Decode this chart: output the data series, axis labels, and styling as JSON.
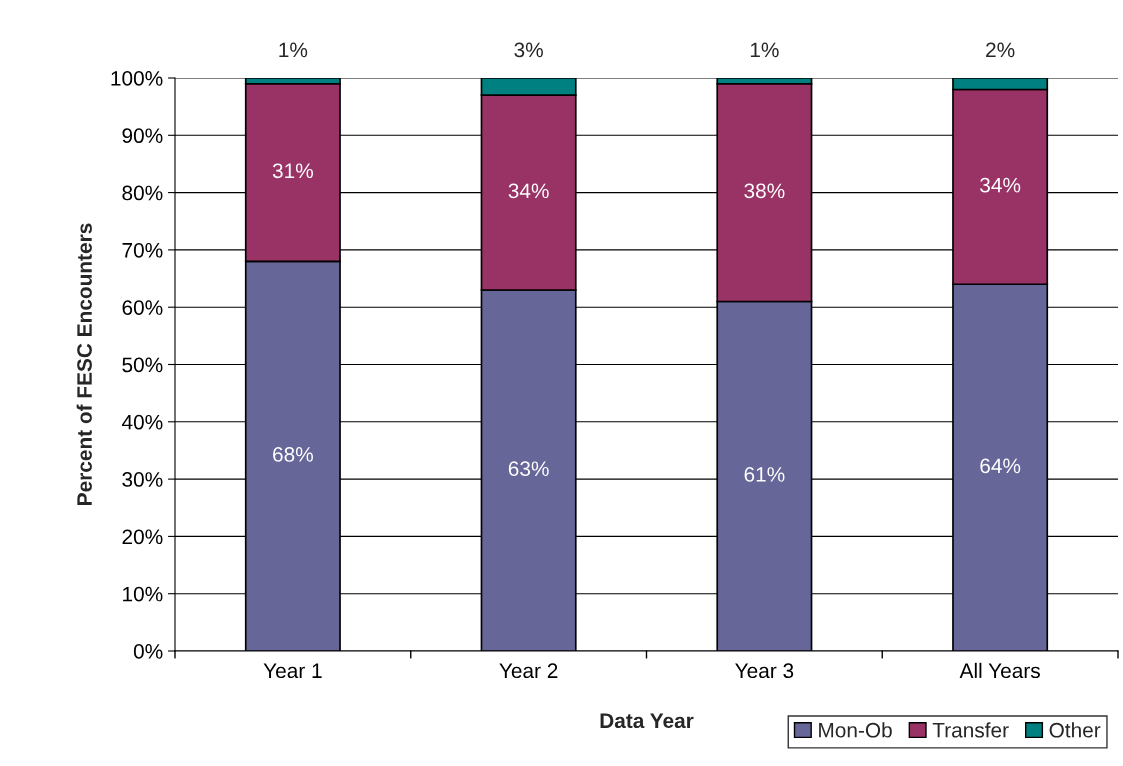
{
  "chart_data": {
    "type": "bar",
    "stacked": true,
    "xlabel": "Data Year",
    "ylabel": "Percent of FESC Encounters",
    "categories": [
      "Year 1",
      "Year 2",
      "Year 3",
      "All Years"
    ],
    "series": [
      {
        "name": "Mon-Ob",
        "color": "#666699",
        "values": [
          68,
          63,
          61,
          64
        ],
        "value_labels": [
          "68%",
          "63%",
          "61%",
          "64%"
        ]
      },
      {
        "name": "Transfer",
        "color": "#993366",
        "values": [
          31,
          34,
          38,
          34
        ],
        "value_labels": [
          "31%",
          "34%",
          "38%",
          "34%"
        ]
      },
      {
        "name": "Other",
        "color": "#008080",
        "values": [
          1,
          3,
          1,
          2
        ],
        "value_labels": [
          "1%",
          "3%",
          "1%",
          "2%"
        ]
      }
    ],
    "ylim": [
      0,
      100
    ],
    "yticks": [
      {
        "value": 0,
        "label": "0%"
      },
      {
        "value": 10,
        "label": "10%"
      },
      {
        "value": 20,
        "label": "20%"
      },
      {
        "value": 30,
        "label": "30%"
      },
      {
        "value": 40,
        "label": "40%"
      },
      {
        "value": 50,
        "label": "50%"
      },
      {
        "value": 60,
        "label": "60%"
      },
      {
        "value": 70,
        "label": "70%"
      },
      {
        "value": 80,
        "label": "80%"
      },
      {
        "value": 90,
        "label": "90%"
      },
      {
        "value": 100,
        "label": "100%"
      }
    ],
    "grid": "y",
    "legend": "bottom right"
  }
}
